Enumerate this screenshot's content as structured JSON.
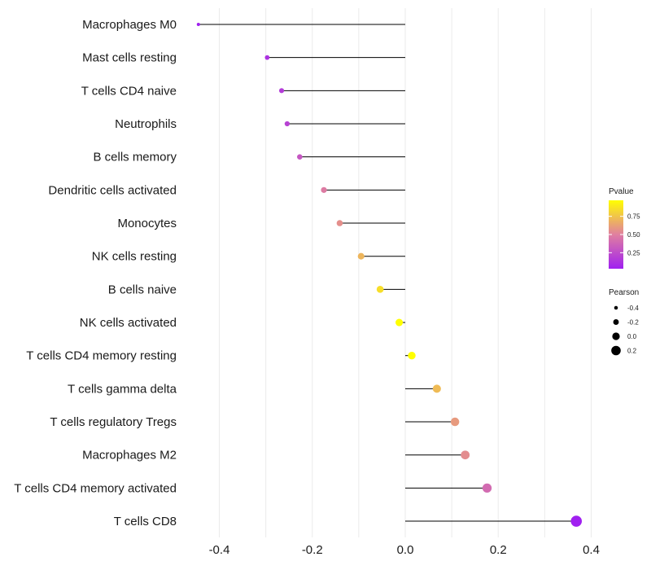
{
  "chart_data": {
    "type": "lollipop",
    "title": "",
    "xlabel": "",
    "ylabel": "",
    "xlim": [
      -0.47,
      0.45
    ],
    "x_ticks": [
      -0.4,
      -0.2,
      0.0,
      0.2,
      0.4
    ],
    "x_tick_labels": [
      "-0.4",
      "-0.2",
      "0.0",
      "0.2",
      "0.4"
    ],
    "grid": true,
    "categories": [
      "Macrophages M0",
      "Mast cells resting",
      "T cells CD4 naive",
      "Neutrophils",
      "B cells memory",
      "Dendritic cells activated",
      "Monocytes",
      "NK cells resting",
      "B cells naive",
      "NK cells activated",
      "T cells CD4 memory resting",
      "T cells gamma delta",
      "T cells regulatory  Tregs",
      "Macrophages M2",
      "T cells CD4 memory activated",
      "T cells CD8"
    ],
    "pearson": [
      -0.445,
      -0.297,
      -0.266,
      -0.254,
      -0.227,
      -0.175,
      -0.141,
      -0.095,
      -0.054,
      -0.013,
      0.014,
      0.068,
      0.107,
      0.129,
      0.176,
      0.368
    ],
    "pvalue": [
      0.03,
      0.12,
      0.17,
      0.2,
      0.3,
      0.48,
      0.56,
      0.7,
      0.85,
      0.97,
      0.97,
      0.72,
      0.6,
      0.55,
      0.4,
      0.03
    ],
    "legend": {
      "color_title": "Pvalue",
      "color_ticks": [
        0.25,
        0.5,
        0.75
      ],
      "color_tick_labels": [
        "0.25",
        "0.50",
        "0.75"
      ],
      "color_range": [
        0.03,
        0.97
      ],
      "size_title": "Pearson",
      "size_values": [
        -0.4,
        -0.2,
        0.0,
        0.2
      ],
      "size_labels": [
        "-0.4",
        "-0.2",
        "0.0",
        "0.2"
      ],
      "position": "right"
    },
    "colors": {
      "low": "#a020f0",
      "mid": "#e07fa0",
      "high": "#ffff00",
      "stem": "#000000",
      "grid": "#ebebeb",
      "size_key": "#000000"
    }
  }
}
